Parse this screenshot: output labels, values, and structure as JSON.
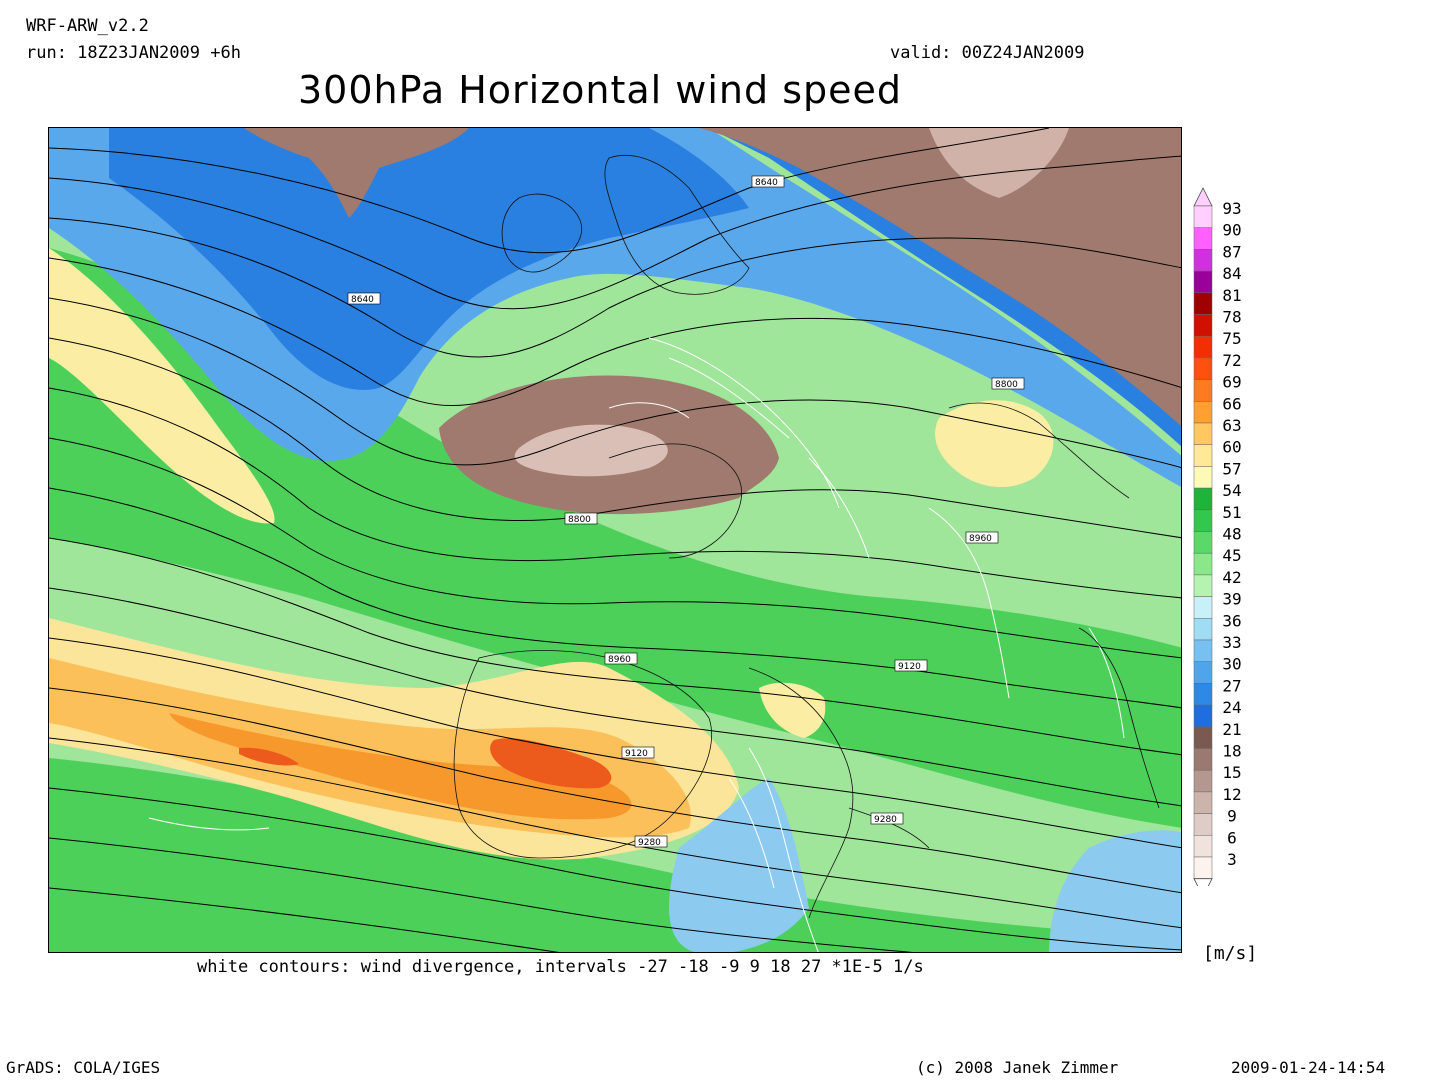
{
  "header": {
    "model": "WRF-ARW_v2.2",
    "run": "run: 18Z23JAN2009 +6h",
    "valid": "valid: 00Z24JAN2009",
    "title": "300hPa Horizontal wind speed"
  },
  "map": {
    "geopotential_labels": [
      "8640",
      "8640",
      "8800",
      "8800",
      "8960",
      "8960",
      "9120",
      "9120",
      "9280",
      "9280"
    ],
    "colors": {
      "brown": "#a07a6e",
      "brown_light": "#c8a89e",
      "blue_dark": "#2a7fe0",
      "blue": "#5aa5ec",
      "blue_light": "#a8dcf4",
      "green_light": "#a6ee9e",
      "green": "#52d25a",
      "green_dark": "#1ec03a",
      "yellow": "#fbeea4",
      "orange_light": "#fbc85e",
      "orange": "#f89a2a",
      "red": "#ee5e1e"
    }
  },
  "legend": {
    "unit": "[m/s]",
    "levels": [
      {
        "label": "93",
        "color": "#ffd0ff"
      },
      {
        "label": "90",
        "color": "#ff60ff"
      },
      {
        "label": "87",
        "color": "#d030e0"
      },
      {
        "label": "84",
        "color": "#9a009a"
      },
      {
        "label": "81",
        "color": "#a00000"
      },
      {
        "label": "78",
        "color": "#d01000"
      },
      {
        "label": "75",
        "color": "#f03000"
      },
      {
        "label": "72",
        "color": "#ff5010"
      },
      {
        "label": "69",
        "color": "#ff7a20"
      },
      {
        "label": "66",
        "color": "#ffa030"
      },
      {
        "label": "63",
        "color": "#ffc860"
      },
      {
        "label": "60",
        "color": "#ffe898"
      },
      {
        "label": "57",
        "color": "#fdfab8"
      },
      {
        "label": "54",
        "color": "#1eb43c"
      },
      {
        "label": "51",
        "color": "#32c850"
      },
      {
        "label": "48",
        "color": "#5ad86a"
      },
      {
        "label": "45",
        "color": "#8ae88a"
      },
      {
        "label": "42",
        "color": "#b4f4b0"
      },
      {
        "label": "39",
        "color": "#c8f0f8"
      },
      {
        "label": "36",
        "color": "#a0dcf4"
      },
      {
        "label": "33",
        "color": "#78c0f0"
      },
      {
        "label": "30",
        "color": "#50a4ec"
      },
      {
        "label": "27",
        "color": "#2e88e6"
      },
      {
        "label": "24",
        "color": "#1e6ee0"
      },
      {
        "label": "21",
        "color": "#7a5a50"
      },
      {
        "label": "18",
        "color": "#9a7a70"
      },
      {
        "label": "15",
        "color": "#b49890"
      },
      {
        "label": "12",
        "color": "#ccb4ac"
      },
      {
        "label": "9",
        "color": "#e0ccc6"
      },
      {
        "label": "6",
        "color": "#f0e2dc"
      },
      {
        "label": "3",
        "color": "#fcf2ee"
      }
    ]
  },
  "footnote": "white contours: wind divergence, intervals -27 -18 -9 9 18 27 *1E-5 1/s",
  "credits": {
    "software": "GrADS: COLA/IGES",
    "author": "(c) 2008 Janek Zimmer",
    "timestamp": "2009-01-24-14:54"
  }
}
